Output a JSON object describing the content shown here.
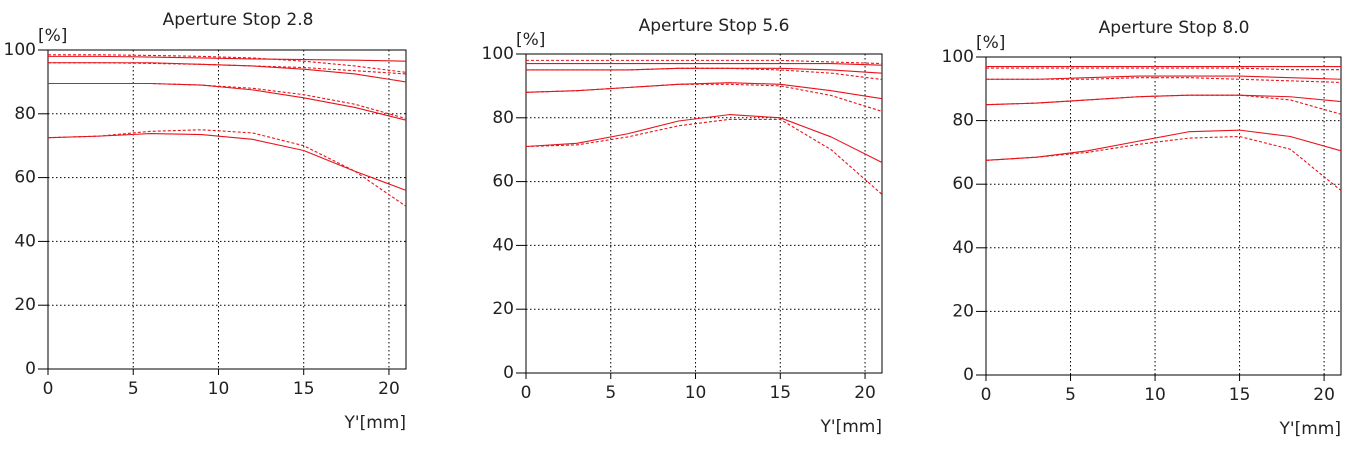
{
  "chart_data": [
    {
      "type": "line",
      "title": "Aperture Stop 2.8",
      "xlabel": "Y'[mm]",
      "ylabel": "[%]",
      "x": [
        0,
        3,
        6,
        9,
        12,
        15,
        18,
        21
      ],
      "xlim": [
        0,
        21
      ],
      "xticks": [
        0,
        5,
        10,
        15,
        20
      ],
      "ylim": [
        0,
        100
      ],
      "yticks": [
        0,
        20,
        40,
        60,
        80,
        100
      ],
      "grid": true,
      "series": [
        {
          "color": "#e8141c",
          "line_style": "solid",
          "values": [
            98,
            98,
            97.8,
            97.5,
            97.2,
            97,
            96.8,
            96.5
          ]
        },
        {
          "color": "#e8141c",
          "line_style": "dashed",
          "values": [
            98.5,
            98.5,
            98.3,
            98,
            97.5,
            96.5,
            95,
            93
          ]
        },
        {
          "color": "#e8141c",
          "line_style": "solid",
          "values": [
            96,
            96,
            96,
            95.5,
            95,
            94,
            92.5,
            90
          ]
        },
        {
          "color": "#e8141c",
          "line_style": "dashed",
          "values": [
            96,
            96,
            95.8,
            95.5,
            95,
            94.5,
            93.5,
            92.5
          ]
        },
        {
          "color": "#e8141c",
          "line_style": "solid",
          "values": [
            89.5,
            89.5,
            89.5,
            89,
            87.5,
            85,
            82,
            78
          ]
        },
        {
          "color": "#e8141c",
          "line_style": "dashed",
          "values": [
            89.5,
            89.5,
            89.5,
            89,
            88,
            86,
            83,
            78.5
          ]
        },
        {
          "color": "#e8141c",
          "line_style": "solid",
          "values": [
            72.5,
            73,
            73.8,
            73.5,
            72,
            68.5,
            62,
            56
          ]
        },
        {
          "color": "#e8141c",
          "line_style": "dashed",
          "values": [
            72.5,
            73,
            74.5,
            75,
            74,
            70,
            62,
            51
          ]
        }
      ]
    },
    {
      "type": "line",
      "title": "Aperture Stop 5.6",
      "xlabel": "Y'[mm]",
      "ylabel": "[%]",
      "x": [
        0,
        3,
        6,
        9,
        12,
        15,
        18,
        21
      ],
      "xlim": [
        0,
        21
      ],
      "xticks": [
        0,
        5,
        10,
        15,
        20
      ],
      "ylim": [
        0,
        100
      ],
      "yticks": [
        0,
        20,
        40,
        60,
        80,
        100
      ],
      "grid": true,
      "series": [
        {
          "color": "#e8141c",
          "line_style": "solid",
          "values": [
            97,
            97,
            97,
            97,
            97,
            97,
            97,
            96.5
          ]
        },
        {
          "color": "#e8141c",
          "line_style": "dashed",
          "values": [
            98,
            98,
            98,
            98,
            98,
            98,
            97.5,
            97
          ]
        },
        {
          "color": "#e8141c",
          "line_style": "solid",
          "values": [
            95,
            95,
            95,
            95.5,
            95.5,
            95.5,
            95,
            94
          ]
        },
        {
          "color": "#e8141c",
          "line_style": "dashed",
          "values": [
            95,
            95,
            95,
            95.5,
            95.5,
            95,
            94,
            92
          ]
        },
        {
          "color": "#e8141c",
          "line_style": "solid",
          "values": [
            88,
            88.5,
            89.5,
            90.5,
            91,
            90.5,
            88.5,
            86
          ]
        },
        {
          "color": "#e8141c",
          "line_style": "dashed",
          "values": [
            88,
            88.5,
            89.5,
            90.5,
            90.5,
            90,
            87,
            82
          ]
        },
        {
          "color": "#e8141c",
          "line_style": "solid",
          "values": [
            71,
            72,
            75,
            79,
            81,
            80,
            74,
            66
          ]
        },
        {
          "color": "#e8141c",
          "line_style": "dashed",
          "values": [
            71,
            71.5,
            74,
            77.5,
            79.5,
            79.5,
            70,
            56
          ]
        }
      ]
    },
    {
      "type": "line",
      "title": "Aperture Stop 8.0",
      "xlabel": "Y'[mm]",
      "ylabel": "[%]",
      "x": [
        0,
        3,
        6,
        9,
        12,
        15,
        18,
        21
      ],
      "xlim": [
        0,
        21
      ],
      "xticks": [
        0,
        5,
        10,
        15,
        20
      ],
      "ylim": [
        0,
        100
      ],
      "yticks": [
        0,
        20,
        40,
        60,
        80,
        100
      ],
      "grid": true,
      "series": [
        {
          "color": "#e8141c",
          "line_style": "solid",
          "values": [
            97,
            97,
            97,
            97,
            97,
            97,
            97,
            97
          ]
        },
        {
          "color": "#e8141c",
          "line_style": "dashed",
          "values": [
            96.5,
            96.5,
            96.5,
            96.5,
            96.5,
            96.5,
            96,
            96
          ]
        },
        {
          "color": "#e8141c",
          "line_style": "solid",
          "values": [
            93,
            93,
            93.5,
            94,
            94,
            94,
            93.5,
            93
          ]
        },
        {
          "color": "#e8141c",
          "line_style": "dashed",
          "values": [
            93,
            93,
            93,
            93.5,
            93.5,
            93,
            92.5,
            92
          ]
        },
        {
          "color": "#e8141c",
          "line_style": "solid",
          "values": [
            85,
            85.5,
            86.5,
            87.5,
            88,
            88,
            87.5,
            86
          ]
        },
        {
          "color": "#e8141c",
          "line_style": "dashed",
          "values": [
            85,
            85.5,
            86.5,
            87.5,
            88,
            88,
            86.5,
            82
          ]
        },
        {
          "color": "#e8141c",
          "line_style": "solid",
          "values": [
            67.5,
            68.5,
            70.5,
            73.5,
            76.5,
            77,
            75,
            70.5
          ]
        },
        {
          "color": "#e8141c",
          "line_style": "dashed",
          "values": [
            67.5,
            68.5,
            70,
            72.5,
            74.5,
            75,
            71,
            58
          ]
        }
      ]
    }
  ]
}
